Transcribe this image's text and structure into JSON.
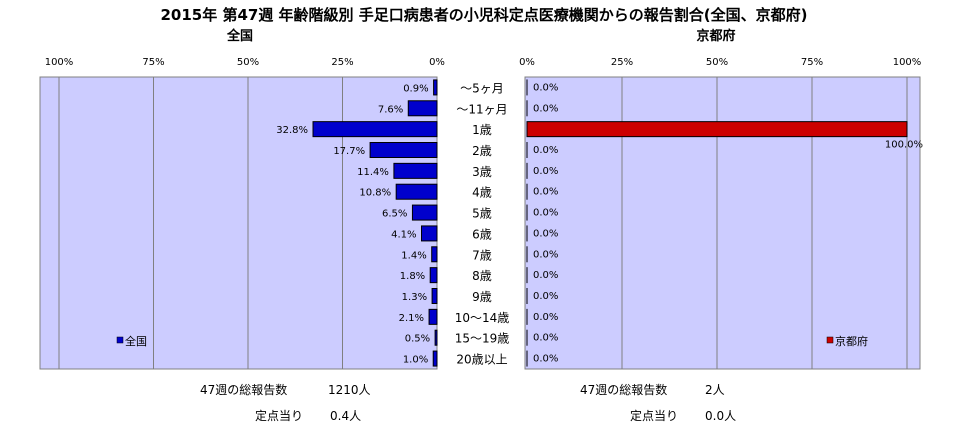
{
  "chart_data": {
    "type": "bar",
    "orientation": "horizontal",
    "title": "2015年 第47週 年齢階級別 手足口病患者の小児科定点医療機関からの報告割合(全国、京都府)",
    "categories": [
      "～5ヶ月",
      "～11ヶ月",
      "1歳",
      "2歳",
      "3歳",
      "4歳",
      "5歳",
      "6歳",
      "7歳",
      "8歳",
      "9歳",
      "10～14歳",
      "15～19歳",
      "20歳以上"
    ],
    "panels": [
      {
        "name": "全国",
        "legend": "全国",
        "color": "#0000cc",
        "direction": "right-to-left",
        "xlim": [
          0,
          100
        ],
        "ticks": [
          "0%",
          "25%",
          "50%",
          "75%",
          "100%"
        ],
        "values": [
          0.9,
          7.6,
          32.8,
          17.7,
          11.4,
          10.8,
          6.5,
          4.1,
          1.4,
          1.8,
          1.3,
          2.1,
          0.5,
          1.0
        ],
        "labels": [
          "0.9%",
          "7.6%",
          "32.8%",
          "17.7%",
          "11.4%",
          "10.8%",
          "6.5%",
          "4.1%",
          "1.4%",
          "1.8%",
          "1.3%",
          "2.1%",
          "0.5%",
          "1.0%"
        ]
      },
      {
        "name": "京都府",
        "legend": "京都府",
        "color": "#cc0000",
        "direction": "left-to-right",
        "xlim": [
          0,
          100
        ],
        "ticks": [
          "0%",
          "25%",
          "50%",
          "75%",
          "100%"
        ],
        "values": [
          0.0,
          0.0,
          100.0,
          0.0,
          0.0,
          0.0,
          0.0,
          0.0,
          0.0,
          0.0,
          0.0,
          0.0,
          0.0,
          0.0
        ],
        "labels": [
          "0.0%",
          "0.0%",
          "100.0%",
          "0.0%",
          "0.0%",
          "0.0%",
          "0.0%",
          "0.0%",
          "0.0%",
          "0.0%",
          "0.0%",
          "0.0%",
          "0.0%",
          "0.0%"
        ]
      }
    ],
    "plot_background": "#ccccff",
    "grid": true
  },
  "footer": {
    "nat_total_label": "47週の総報告数",
    "nat_total_value": "1210人",
    "nat_per_label": "定点当り",
    "nat_per_value": "0.4人",
    "kyo_total_label": "47週の総報告数",
    "kyo_total_value": "2人",
    "kyo_per_label": "定点当り",
    "kyo_per_value": "0.0人"
  }
}
